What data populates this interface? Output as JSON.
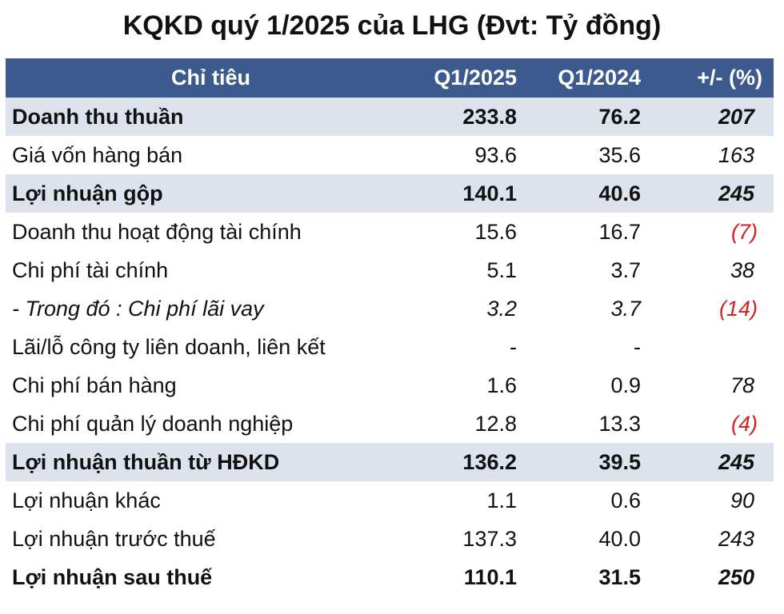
{
  "title": "KQKD quý 1/2025 của LHG (Đvt: Tỷ đồng)",
  "table": {
    "header": [
      "Chỉ tiêu",
      "Q1/2025",
      "Q1/2024",
      "+/- (%)"
    ],
    "rows": [
      [
        "Doanh thu thuần",
        "233.8",
        "76.2",
        "207"
      ],
      [
        "Giá vốn hàng bán",
        "93.6",
        "35.6",
        "163"
      ],
      [
        "Lợi nhuận gộp",
        "140.1",
        "40.6",
        "245"
      ],
      [
        "Doanh thu hoạt động tài chính",
        "15.6",
        "16.7",
        "(7)"
      ],
      [
        "Chi phí tài chính",
        "5.1",
        "3.7",
        "38"
      ],
      [
        "- Trong đó : Chi phí lãi vay",
        "3.2",
        "3.7",
        "(14)"
      ],
      [
        "Lãi/lỗ công ty liên doanh, liên kết",
        "-",
        "-",
        null
      ],
      [
        "Chi phí bán hàng",
        "1.6",
        "0.9",
        "78"
      ],
      [
        "Chi phí quản lý doanh nghiệp",
        "12.8",
        "13.3",
        "(4)"
      ],
      [
        "Lợi nhuận thuần từ HĐKD",
        "136.2",
        "39.5",
        "245"
      ],
      [
        "Lợi nhuận khác",
        "1.1",
        "0.6",
        "90"
      ],
      [
        "Lợi nhuận trước thuế",
        "137.3",
        "40.0",
        "243"
      ],
      [
        "Lợi nhuận sau thuế",
        "110.1",
        "31.5",
        "250"
      ]
    ]
  }
}
